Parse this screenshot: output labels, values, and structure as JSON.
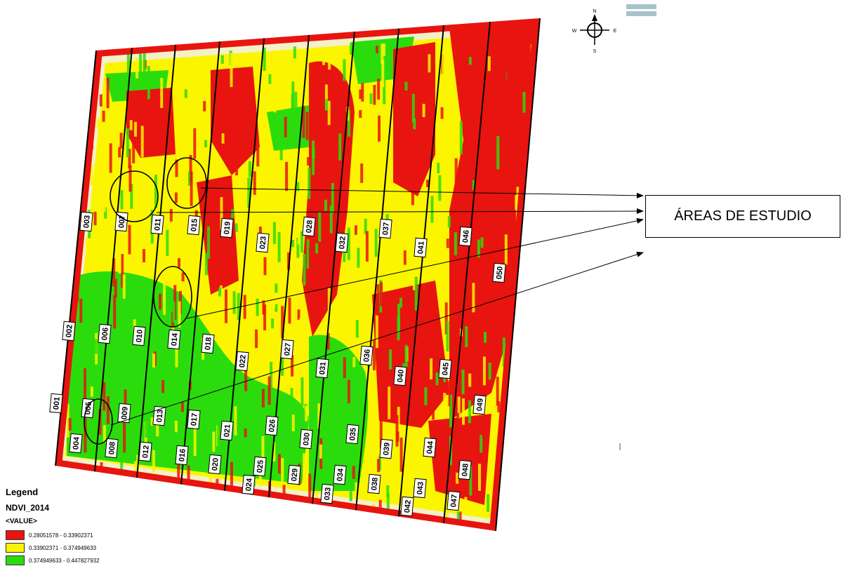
{
  "callout": {
    "text": "ÁREAS DE ESTUDIO"
  },
  "compass": {
    "n": "N",
    "s": "S",
    "e": "E",
    "w": "W"
  },
  "legend": {
    "title": "Legend",
    "layer": "NDVI_2014",
    "field": "<VALUE>",
    "classes": [
      {
        "label": "0.28051578 - 0.33902371",
        "color": "#e8140f"
      },
      {
        "label": "0.33902371 - 0.374949633",
        "color": "#fbf500"
      },
      {
        "label": "0.374949633 - 0.447827932",
        "color": "#2bdc0c"
      }
    ]
  },
  "map": {
    "colors": {
      "low": "#e8140f",
      "mid": "#fbf500",
      "high": "#2bdc0c",
      "border": "#f4f0c8"
    },
    "plots": [
      {
        "id": "001"
      },
      {
        "id": "002"
      },
      {
        "id": "003"
      },
      {
        "id": "004"
      },
      {
        "id": "005"
      },
      {
        "id": "006"
      },
      {
        "id": "007"
      },
      {
        "id": "008"
      },
      {
        "id": "009"
      },
      {
        "id": "010"
      },
      {
        "id": "011"
      },
      {
        "id": "012"
      },
      {
        "id": "013"
      },
      {
        "id": "014"
      },
      {
        "id": "015"
      },
      {
        "id": "016"
      },
      {
        "id": "017"
      },
      {
        "id": "018"
      },
      {
        "id": "019"
      },
      {
        "id": "020"
      },
      {
        "id": "021"
      },
      {
        "id": "022"
      },
      {
        "id": "023"
      },
      {
        "id": "024"
      },
      {
        "id": "025"
      },
      {
        "id": "026"
      },
      {
        "id": "027"
      },
      {
        "id": "028"
      },
      {
        "id": "029"
      },
      {
        "id": "030"
      },
      {
        "id": "031"
      },
      {
        "id": "032"
      },
      {
        "id": "033"
      },
      {
        "id": "034"
      },
      {
        "id": "035"
      },
      {
        "id": "036"
      },
      {
        "id": "037"
      },
      {
        "id": "038"
      },
      {
        "id": "039"
      },
      {
        "id": "040"
      },
      {
        "id": "041"
      },
      {
        "id": "042"
      },
      {
        "id": "043"
      },
      {
        "id": "044"
      },
      {
        "id": "045"
      },
      {
        "id": "046"
      },
      {
        "id": "047"
      },
      {
        "id": "048"
      },
      {
        "id": "049"
      },
      {
        "id": "050"
      }
    ]
  }
}
